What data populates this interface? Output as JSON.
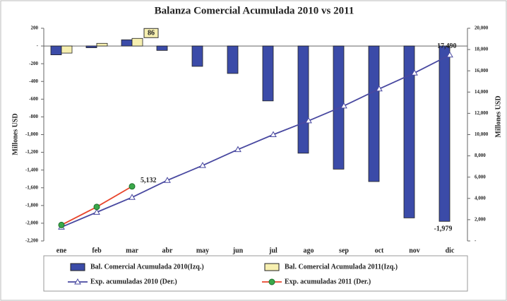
{
  "chart_data": {
    "type": "bar-line",
    "title": "Balanza Comercial Acumulada 2010 vs 2011",
    "y_label": "Millones USD",
    "y2_label": "Millones USD",
    "categories": [
      "ene",
      "feb",
      "mar",
      "abr",
      "may",
      "jun",
      "jul",
      "ago",
      "sep",
      "oct",
      "nov",
      "dic"
    ],
    "ylim": [
      -2200,
      200
    ],
    "yticks": [
      200,
      {
        "value": 0,
        "label": "-"
      },
      -200,
      -400,
      -600,
      -800,
      {
        "value": -1000,
        "label": "-1,000"
      },
      {
        "value": -1200,
        "label": "-1,200"
      },
      {
        "value": -1400,
        "label": "-1,400"
      },
      {
        "value": -1600,
        "label": "-1,600"
      },
      {
        "value": -1800,
        "label": "-1,800"
      },
      {
        "value": -2000,
        "label": "-2,000"
      },
      {
        "value": -2200,
        "label": "-2,200"
      }
    ],
    "y2lim": [
      0,
      20000
    ],
    "y2ticks": [
      {
        "value": 0,
        "label": "-"
      },
      {
        "value": 2000,
        "label": "2,000"
      },
      {
        "value": 4000,
        "label": "4,000"
      },
      {
        "value": 6000,
        "label": "6,000"
      },
      {
        "value": 8000,
        "label": "8,000"
      },
      {
        "value": 10000,
        "label": "10,000"
      },
      {
        "value": 12000,
        "label": "12,000"
      },
      {
        "value": 14000,
        "label": "14,000"
      },
      {
        "value": 16000,
        "label": "16,000"
      },
      {
        "value": 18000,
        "label": "18,000"
      },
      {
        "value": 20000,
        "label": "20,000"
      }
    ],
    "series": [
      {
        "name": "Bal. Comercial Acumulada 2010(Izq.)",
        "kind": "bar",
        "color": "#3b4ba8",
        "values": [
          -100,
          -20,
          70,
          -50,
          -230,
          -310,
          -620,
          -1210,
          -1390,
          -1530,
          -1940,
          -1979
        ],
        "value_labels": [
          null,
          null,
          null,
          null,
          null,
          null,
          null,
          null,
          null,
          null,
          null,
          "-1,979"
        ]
      },
      {
        "name": "Bal. Comercial Acumulada 2011(Izq.)",
        "kind": "bar",
        "color": "#f6efb0",
        "values": [
          -80,
          30,
          86,
          null,
          null,
          null,
          null,
          null,
          null,
          null,
          null,
          null
        ],
        "value_labels": [
          null,
          null,
          "86",
          null,
          null,
          null,
          null,
          null,
          null,
          null,
          null,
          null
        ]
      },
      {
        "name": "Exp. acumuladas 2010 (Der.)",
        "kind": "line",
        "axis": "y2",
        "color": "#4848a0",
        "values": [
          1300,
          2700,
          4100,
          5700,
          7100,
          8600,
          10000,
          11300,
          12700,
          14300,
          15800,
          17490
        ],
        "value_labels": [
          null,
          null,
          null,
          null,
          null,
          null,
          null,
          null,
          null,
          null,
          null,
          "17,490"
        ]
      },
      {
        "name": "Exp. acumuladas 2011 (Der.)",
        "kind": "line",
        "axis": "y2",
        "color": "#e8452c",
        "values": [
          1500,
          3200,
          5132,
          null,
          null,
          null,
          null,
          null,
          null,
          null,
          null,
          null
        ],
        "value_labels": [
          null,
          null,
          "5,132",
          null,
          null,
          null,
          null,
          null,
          null,
          null,
          null,
          null
        ]
      }
    ]
  }
}
